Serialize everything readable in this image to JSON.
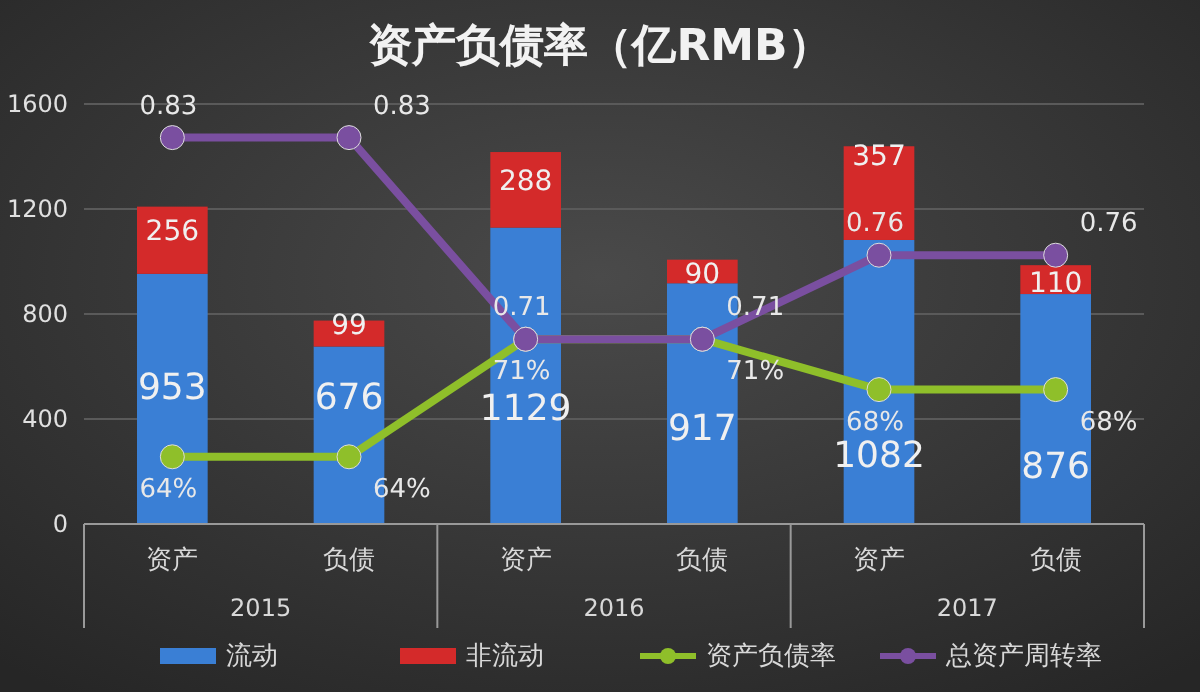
{
  "chart_data": {
    "type": "bar",
    "title": "资产负债率（亿RMB）",
    "stacked": true,
    "data_labels": true,
    "categories": [
      "资产",
      "负债",
      "资产",
      "负债",
      "资产",
      "负债"
    ],
    "annotations": [
      "2015",
      "2016",
      "2017"
    ],
    "series": [
      {
        "name": "流动",
        "color": "#3a7fd5",
        "values": [
          953,
          676,
          1129,
          917,
          1082,
          876
        ]
      },
      {
        "name": "非流动",
        "color": "#d42a2a",
        "values": [
          256,
          99,
          288,
          90,
          357,
          110
        ]
      },
      {
        "name": "资产负债率",
        "type": "line",
        "axis": "y2",
        "color": "#8fbf2a",
        "values": [
          0.64,
          0.64,
          0.71,
          0.71,
          0.68,
          0.68
        ],
        "value_labels": [
          "64%",
          "64%",
          "71%",
          "71%",
          "68%",
          "68%"
        ]
      },
      {
        "name": "总资产周转率",
        "type": "line",
        "axis": "y2",
        "color": "#7a4fa0",
        "values": [
          0.83,
          0.83,
          0.71,
          0.71,
          0.76,
          0.76
        ],
        "value_labels": [
          "0.83",
          "0.83",
          "0.71",
          "0.71",
          "0.76",
          "0.76"
        ]
      }
    ],
    "ylim": [
      0,
      1600
    ],
    "yticks": [
      0,
      400,
      800,
      1200,
      1600
    ],
    "y2lim": [
      0.6,
      0.85
    ],
    "grid": "y",
    "legend": "bottom",
    "marker": "circle",
    "line_style": "solid"
  }
}
